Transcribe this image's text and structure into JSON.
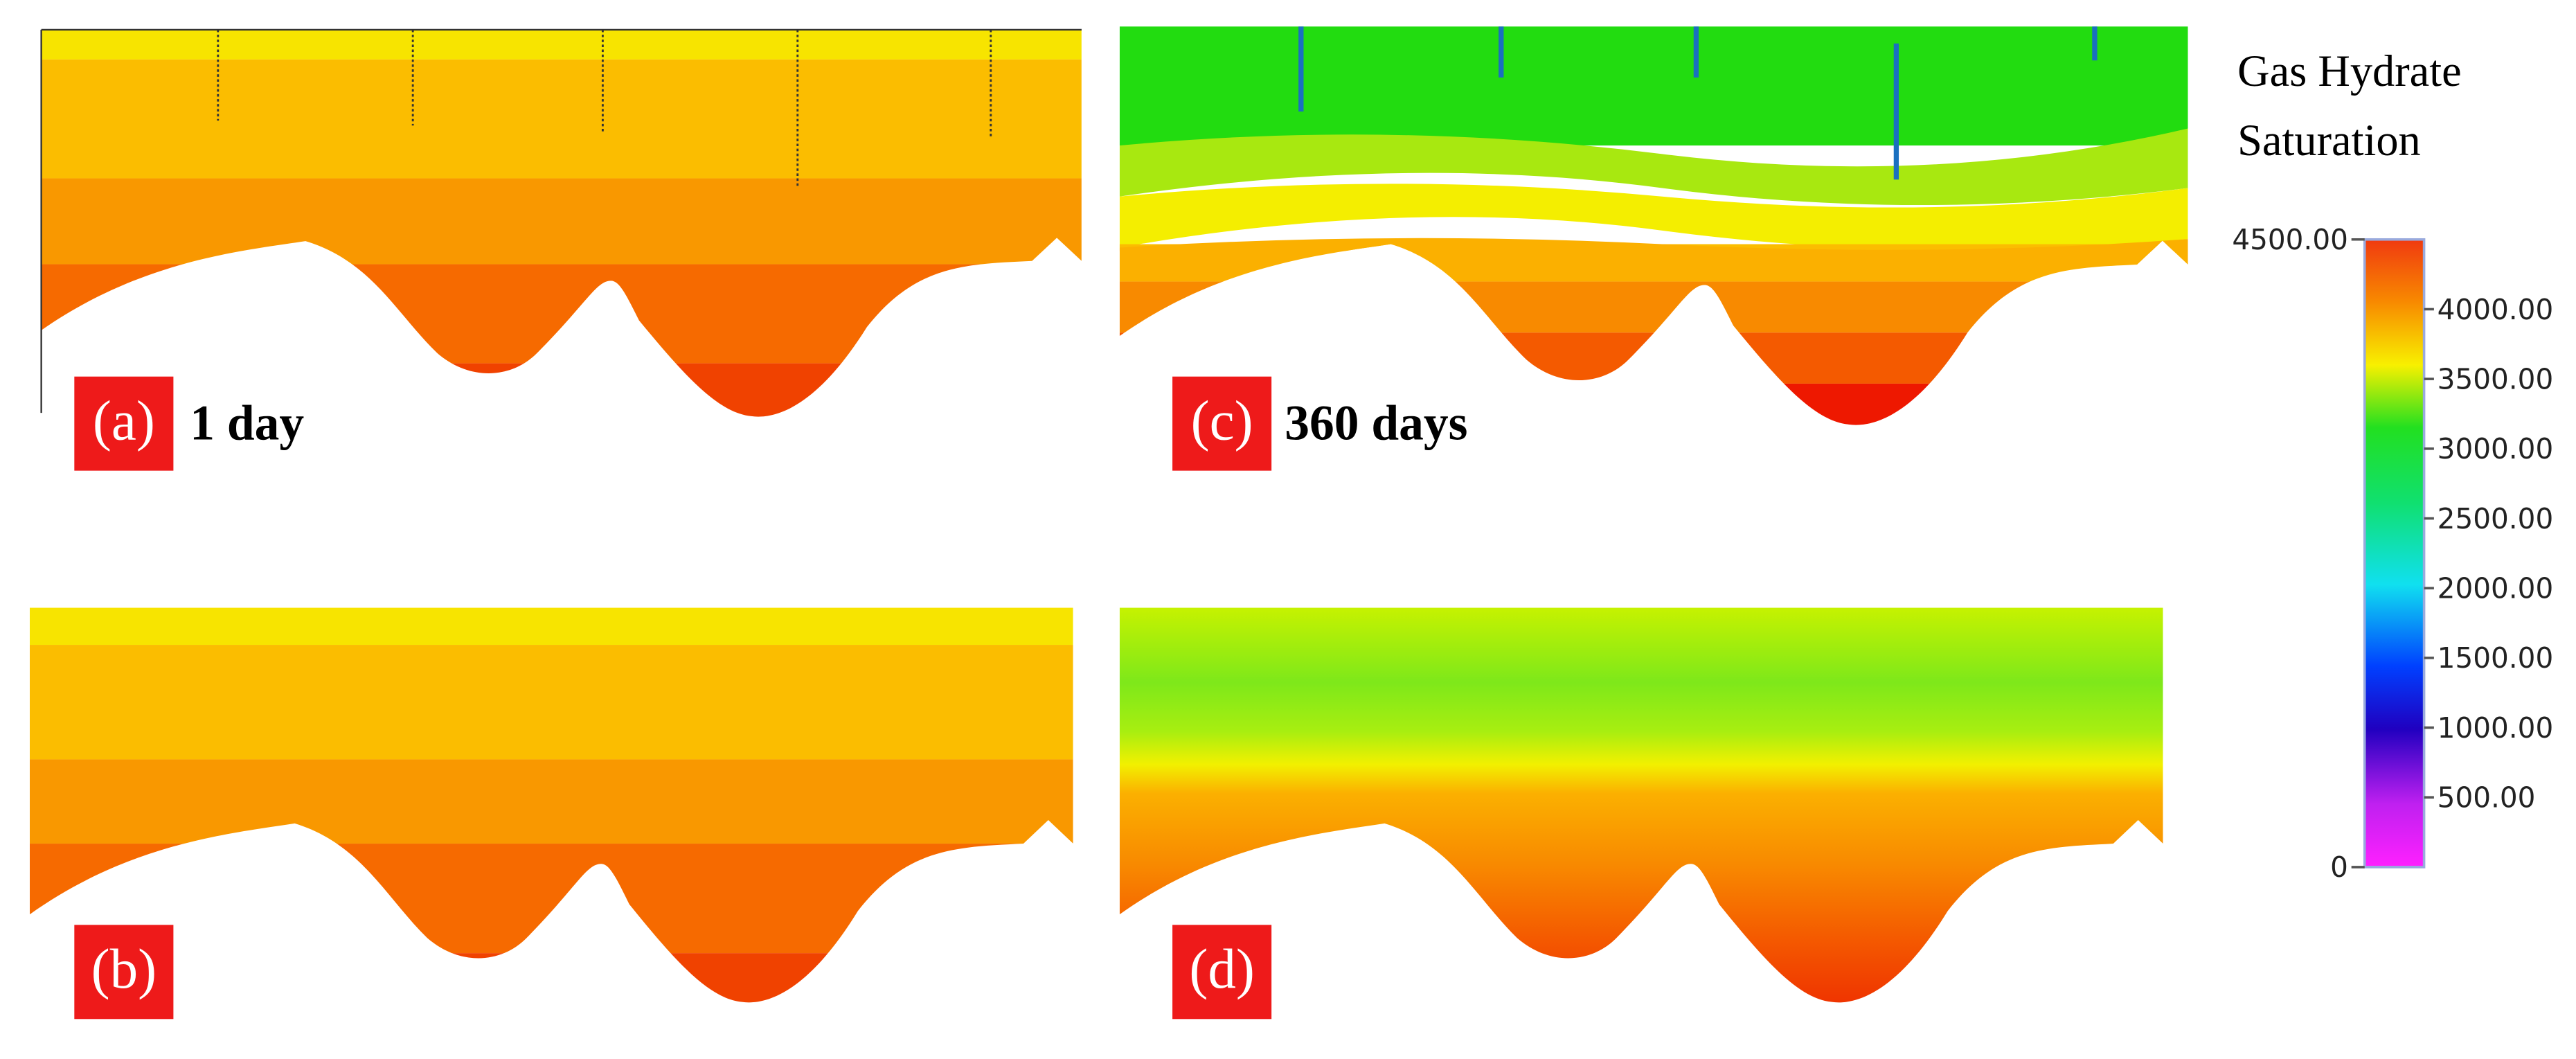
{
  "panels": [
    {
      "label": "(a)",
      "caption": "1 day"
    },
    {
      "label": "(b)"
    },
    {
      "label": "(c)",
      "caption": "360 days"
    },
    {
      "label": "(d)"
    }
  ],
  "colorbar": {
    "title": [
      "Gas Hydrate",
      "Saturation"
    ],
    "ticks": [
      "4500.00",
      "4000.00",
      "3500.00",
      "3000.00",
      "2500.00",
      "2000.00",
      "1500.00",
      "1000.00",
      "500.00",
      "0"
    ]
  }
}
